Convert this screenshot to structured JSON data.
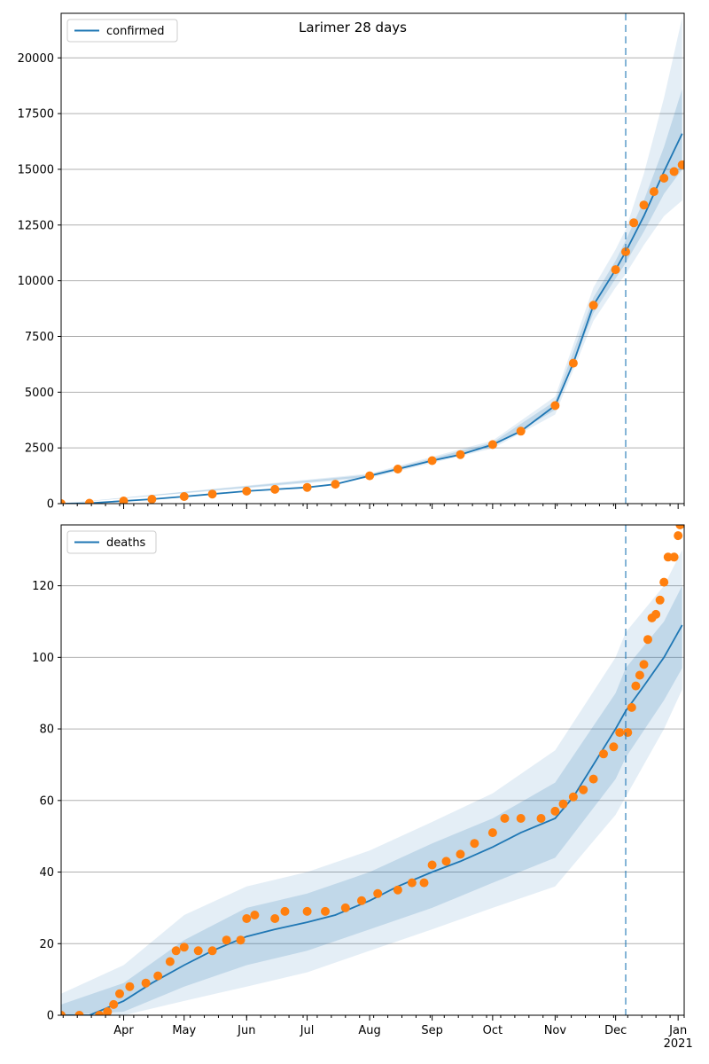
{
  "chart_data": [
    {
      "type": "line",
      "title": "Larimer 28 days",
      "legend": {
        "location": "top-left",
        "entries": [
          "confirmed"
        ]
      },
      "grid": "horizontal",
      "forecast_start": "2020-12-06",
      "x_range": [
        "2020-03-01",
        "2021-01-04"
      ],
      "ylim": [
        0,
        22000
      ],
      "yticks": [
        0,
        2500,
        5000,
        7500,
        10000,
        12500,
        15000,
        17500,
        20000
      ],
      "xtick_labels": [
        "Apr",
        "May",
        "Jun",
        "Jul",
        "Aug",
        "Sep",
        "Oct",
        "Nov",
        "Dec",
        "Jan\n2021"
      ],
      "series": [
        {
          "name": "confirmed",
          "style": "line",
          "color": "#1f77b4",
          "points": [
            [
              "2020-03-01",
              0
            ],
            [
              "2020-03-15",
              20
            ],
            [
              "2020-04-01",
              120
            ],
            [
              "2020-04-15",
              200
            ],
            [
              "2020-05-01",
              320
            ],
            [
              "2020-05-15",
              430
            ],
            [
              "2020-06-01",
              560
            ],
            [
              "2020-06-15",
              640
            ],
            [
              "2020-07-01",
              730
            ],
            [
              "2020-07-15",
              870
            ],
            [
              "2020-08-01",
              1250
            ],
            [
              "2020-08-15",
              1550
            ],
            [
              "2020-09-01",
              1930
            ],
            [
              "2020-09-15",
              2200
            ],
            [
              "2020-10-01",
              2650
            ],
            [
              "2020-10-15",
              3250
            ],
            [
              "2020-11-01",
              4400
            ],
            [
              "2020-11-10",
              6300
            ],
            [
              "2020-11-20",
              8900
            ],
            [
              "2020-12-01",
              10500
            ],
            [
              "2020-12-06",
              11300
            ],
            [
              "2020-12-15",
              12900
            ],
            [
              "2020-12-25",
              14900
            ],
            [
              "2021-01-03",
              16600
            ]
          ]
        },
        {
          "name": "",
          "style": "scatter",
          "color": "#ff7f0e",
          "points": [
            [
              "2020-03-01",
              0
            ],
            [
              "2020-03-15",
              20
            ],
            [
              "2020-04-01",
              120
            ],
            [
              "2020-04-15",
              200
            ],
            [
              "2020-05-01",
              320
            ],
            [
              "2020-05-15",
              430
            ],
            [
              "2020-06-01",
              560
            ],
            [
              "2020-06-15",
              640
            ],
            [
              "2020-07-01",
              730
            ],
            [
              "2020-07-15",
              870
            ],
            [
              "2020-08-01",
              1250
            ],
            [
              "2020-08-15",
              1550
            ],
            [
              "2020-09-01",
              1930
            ],
            [
              "2020-09-15",
              2200
            ],
            [
              "2020-10-01",
              2650
            ],
            [
              "2020-10-15",
              3250
            ],
            [
              "2020-11-01",
              4400
            ],
            [
              "2020-11-10",
              6300
            ],
            [
              "2020-11-20",
              8900
            ],
            [
              "2020-12-01",
              10500
            ],
            [
              "2020-12-06",
              11300
            ],
            [
              "2020-12-10",
              12600
            ],
            [
              "2020-12-15",
              13400
            ],
            [
              "2020-12-20",
              14000
            ],
            [
              "2020-12-25",
              14600
            ],
            [
              "2020-12-30",
              14900
            ],
            [
              "2021-01-03",
              15200
            ]
          ]
        }
      ],
      "bands": [
        {
          "shade": "outer",
          "lower": [
            [
              "2020-03-01",
              0
            ],
            [
              "2020-08-01",
              1150
            ],
            [
              "2020-10-01",
              2480
            ],
            [
              "2020-11-01",
              4000
            ],
            [
              "2020-11-20",
              8200
            ],
            [
              "2020-12-01",
              9700
            ],
            [
              "2020-12-06",
              10300
            ],
            [
              "2020-12-15",
              11600
            ],
            [
              "2020-12-25",
              12900
            ],
            [
              "2021-01-03",
              13600
            ]
          ],
          "upper": [
            [
              "2020-03-01",
              0
            ],
            [
              "2020-08-01",
              1350
            ],
            [
              "2020-10-01",
              2830
            ],
            [
              "2020-11-01",
              4800
            ],
            [
              "2020-11-20",
              9700
            ],
            [
              "2020-12-01",
              11400
            ],
            [
              "2020-12-06",
              12300
            ],
            [
              "2020-12-15",
              14800
            ],
            [
              "2020-12-25",
              18200
            ],
            [
              "2021-01-03",
              21800
            ]
          ]
        },
        {
          "shade": "inner",
          "lower": [
            [
              "2020-03-01",
              0
            ],
            [
              "2020-08-01",
              1200
            ],
            [
              "2020-10-01",
              2560
            ],
            [
              "2020-11-01",
              4200
            ],
            [
              "2020-11-20",
              8550
            ],
            [
              "2020-12-01",
              10100
            ],
            [
              "2020-12-06",
              10800
            ],
            [
              "2020-12-15",
              12200
            ],
            [
              "2020-12-25",
              13900
            ],
            [
              "2021-01-03",
              15000
            ]
          ],
          "upper": [
            [
              "2020-03-01",
              0
            ],
            [
              "2020-08-01",
              1300
            ],
            [
              "2020-10-01",
              2740
            ],
            [
              "2020-11-01",
              4600
            ],
            [
              "2020-11-20",
              9250
            ],
            [
              "2020-12-01",
              10900
            ],
            [
              "2020-12-06",
              11800
            ],
            [
              "2020-12-15",
              13600
            ],
            [
              "2020-12-25",
              16000
            ],
            [
              "2021-01-03",
              18600
            ]
          ]
        }
      ]
    },
    {
      "type": "line",
      "title": "",
      "legend": {
        "location": "top-left",
        "entries": [
          "deaths"
        ]
      },
      "grid": "horizontal",
      "forecast_start": "2020-12-06",
      "x_range": [
        "2020-03-01",
        "2021-01-04"
      ],
      "ylim": [
        0,
        137
      ],
      "yticks": [
        0,
        20,
        40,
        60,
        80,
        100,
        120
      ],
      "xtick_labels": [
        "Apr",
        "May",
        "Jun",
        "Jul",
        "Aug",
        "Sep",
        "Oct",
        "Nov",
        "Dec",
        "Jan\n2021"
      ],
      "series": [
        {
          "name": "deaths",
          "style": "line",
          "color": "#1f77b4",
          "points": [
            [
              "2020-03-01",
              0
            ],
            [
              "2020-03-15",
              0
            ],
            [
              "2020-04-01",
              4
            ],
            [
              "2020-04-15",
              9
            ],
            [
              "2020-05-01",
              14
            ],
            [
              "2020-05-15",
              18
            ],
            [
              "2020-06-01",
              22
            ],
            [
              "2020-06-15",
              24
            ],
            [
              "2020-07-01",
              26
            ],
            [
              "2020-07-15",
              28
            ],
            [
              "2020-08-01",
              32
            ],
            [
              "2020-08-15",
              36
            ],
            [
              "2020-09-01",
              40
            ],
            [
              "2020-09-15",
              43
            ],
            [
              "2020-10-01",
              47
            ],
            [
              "2020-10-15",
              51
            ],
            [
              "2020-11-01",
              55
            ],
            [
              "2020-11-10",
              61
            ],
            [
              "2020-11-20",
              70
            ],
            [
              "2020-12-01",
              80
            ],
            [
              "2020-12-06",
              85
            ],
            [
              "2020-12-15",
              92
            ],
            [
              "2020-12-25",
              100
            ],
            [
              "2021-01-03",
              109
            ]
          ]
        },
        {
          "name": "",
          "style": "scatter",
          "color": "#ff7f0e",
          "points": [
            [
              "2020-03-01",
              0
            ],
            [
              "2020-03-10",
              0
            ],
            [
              "2020-03-20",
              0
            ],
            [
              "2020-03-24",
              1
            ],
            [
              "2020-03-27",
              3
            ],
            [
              "2020-03-30",
              6
            ],
            [
              "2020-04-04",
              8
            ],
            [
              "2020-04-12",
              9
            ],
            [
              "2020-04-18",
              11
            ],
            [
              "2020-04-24",
              15
            ],
            [
              "2020-04-27",
              18
            ],
            [
              "2020-05-01",
              19
            ],
            [
              "2020-05-08",
              18
            ],
            [
              "2020-05-15",
              18
            ],
            [
              "2020-05-22",
              21
            ],
            [
              "2020-05-29",
              21
            ],
            [
              "2020-06-01",
              27
            ],
            [
              "2020-06-05",
              28
            ],
            [
              "2020-06-15",
              27
            ],
            [
              "2020-06-20",
              29
            ],
            [
              "2020-07-01",
              29
            ],
            [
              "2020-07-10",
              29
            ],
            [
              "2020-07-20",
              30
            ],
            [
              "2020-07-28",
              32
            ],
            [
              "2020-08-05",
              34
            ],
            [
              "2020-08-15",
              35
            ],
            [
              "2020-08-22",
              37
            ],
            [
              "2020-08-28",
              37
            ],
            [
              "2020-09-01",
              42
            ],
            [
              "2020-09-08",
              43
            ],
            [
              "2020-09-15",
              45
            ],
            [
              "2020-09-22",
              48
            ],
            [
              "2020-10-01",
              51
            ],
            [
              "2020-10-07",
              55
            ],
            [
              "2020-10-15",
              55
            ],
            [
              "2020-10-25",
              55
            ],
            [
              "2020-11-01",
              57
            ],
            [
              "2020-11-05",
              59
            ],
            [
              "2020-11-10",
              61
            ],
            [
              "2020-11-15",
              63
            ],
            [
              "2020-11-20",
              66
            ],
            [
              "2020-11-25",
              73
            ],
            [
              "2020-11-30",
              75
            ],
            [
              "2020-12-03",
              79
            ],
            [
              "2020-12-07",
              79
            ],
            [
              "2020-12-09",
              86
            ],
            [
              "2020-12-11",
              92
            ],
            [
              "2020-12-13",
              95
            ],
            [
              "2020-12-15",
              98
            ],
            [
              "2020-12-17",
              105
            ],
            [
              "2020-12-19",
              111
            ],
            [
              "2020-12-21",
              112
            ],
            [
              "2020-12-23",
              116
            ],
            [
              "2020-12-25",
              121
            ],
            [
              "2020-12-27",
              128
            ],
            [
              "2020-12-30",
              128
            ],
            [
              "2021-01-01",
              134
            ],
            [
              "2021-01-02",
              137
            ]
          ]
        }
      ],
      "bands": [
        {
          "shade": "outer",
          "lower": [
            [
              "2020-03-01",
              0
            ],
            [
              "2020-04-01",
              0
            ],
            [
              "2020-05-01",
              4
            ],
            [
              "2020-06-01",
              8
            ],
            [
              "2020-07-01",
              12
            ],
            [
              "2020-08-01",
              18
            ],
            [
              "2020-09-01",
              24
            ],
            [
              "2020-10-01",
              30
            ],
            [
              "2020-11-01",
              36
            ],
            [
              "2020-12-01",
              56
            ],
            [
              "2020-12-06",
              61
            ],
            [
              "2020-12-25",
              80
            ],
            [
              "2021-01-03",
              91
            ]
          ],
          "upper": [
            [
              "2020-03-01",
              6
            ],
            [
              "2020-04-01",
              14
            ],
            [
              "2020-05-01",
              28
            ],
            [
              "2020-06-01",
              36
            ],
            [
              "2020-07-01",
              40
            ],
            [
              "2020-08-01",
              46
            ],
            [
              "2020-09-01",
              54
            ],
            [
              "2020-10-01",
              62
            ],
            [
              "2020-11-01",
              74
            ],
            [
              "2020-12-01",
              100
            ],
            [
              "2020-12-06",
              107
            ],
            [
              "2020-12-25",
              120
            ],
            [
              "2021-01-03",
              130
            ]
          ]
        },
        {
          "shade": "inner",
          "lower": [
            [
              "2020-03-01",
              0
            ],
            [
              "2020-04-01",
              1
            ],
            [
              "2020-05-01",
              8
            ],
            [
              "2020-06-01",
              14
            ],
            [
              "2020-07-01",
              18
            ],
            [
              "2020-08-01",
              24
            ],
            [
              "2020-09-01",
              30
            ],
            [
              "2020-10-01",
              37
            ],
            [
              "2020-11-01",
              44
            ],
            [
              "2020-12-01",
              66
            ],
            [
              "2020-12-06",
              72
            ],
            [
              "2020-12-25",
              88
            ],
            [
              "2021-01-03",
              97
            ]
          ],
          "upper": [
            [
              "2020-03-01",
              3
            ],
            [
              "2020-04-01",
              9
            ],
            [
              "2020-05-01",
              21
            ],
            [
              "2020-06-01",
              30
            ],
            [
              "2020-07-01",
              34
            ],
            [
              "2020-08-01",
              40
            ],
            [
              "2020-09-01",
              48
            ],
            [
              "2020-10-01",
              55
            ],
            [
              "2020-11-01",
              65
            ],
            [
              "2020-12-01",
              90
            ],
            [
              "2020-12-06",
              97
            ],
            [
              "2020-12-25",
              110
            ],
            [
              "2021-01-03",
              120
            ]
          ]
        }
      ]
    }
  ]
}
